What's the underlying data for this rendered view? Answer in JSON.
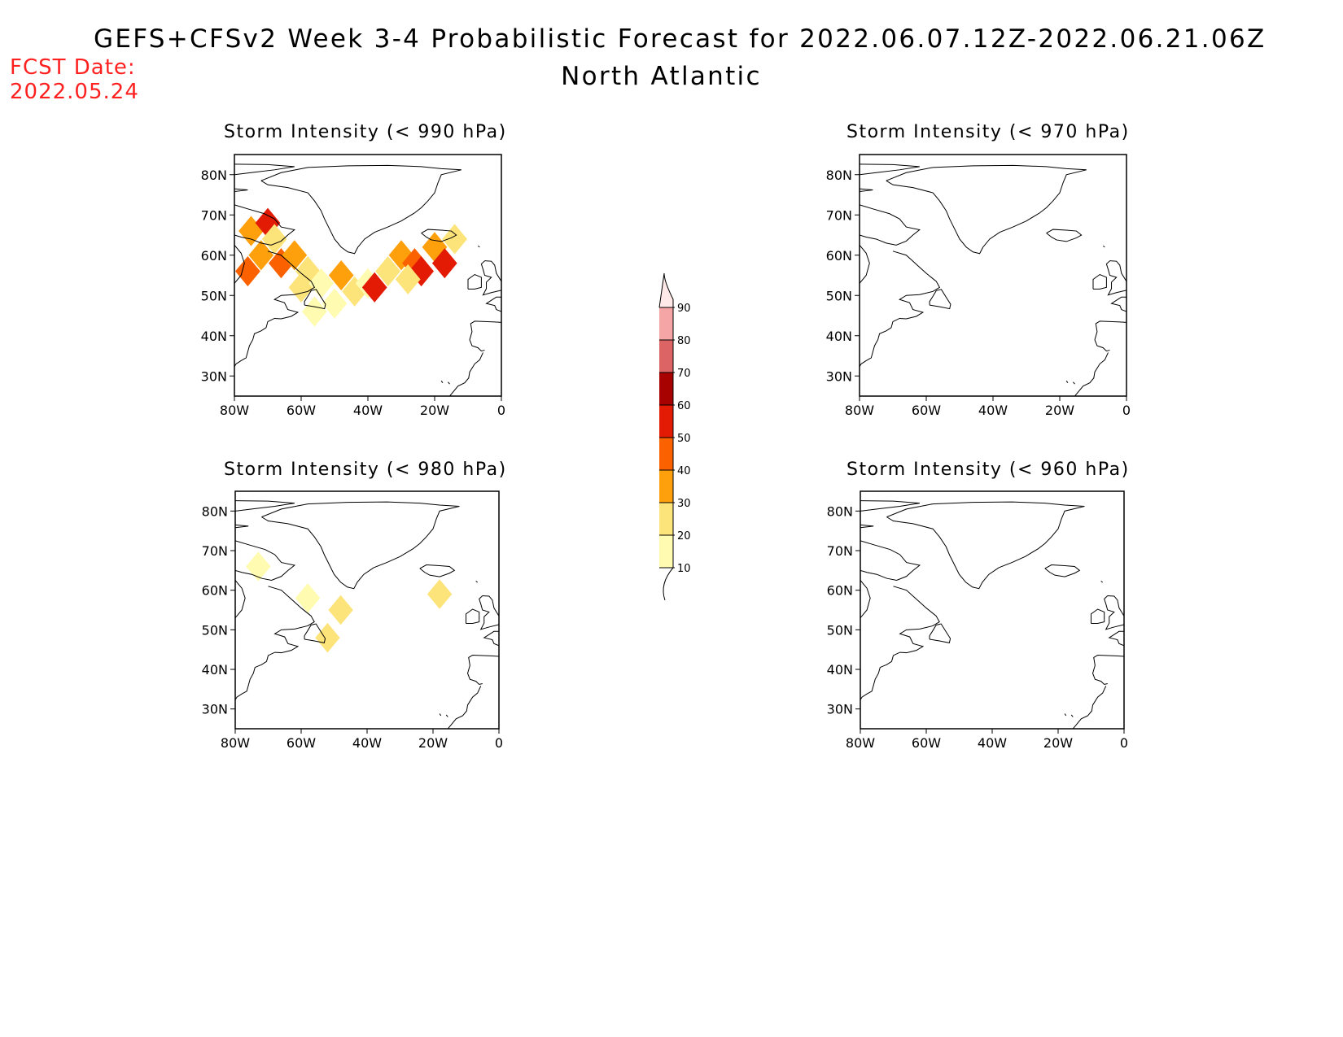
{
  "header": {
    "title": "GEFS+CFSv2 Week 3-4 Probabilistic Forecast for 2022.06.07.12Z-2022.06.21.06Z",
    "region": "North Atlantic",
    "fcst_label": "FCST Date:",
    "fcst_date": "2022.05.24",
    "fcst_color": "#ff2020"
  },
  "map_axes": {
    "lon_range": [
      -80,
      0
    ],
    "lat_range": [
      25,
      85
    ],
    "lon_ticks": [
      -80,
      -60,
      -40,
      -20,
      0
    ],
    "lon_tick_labels": [
      "80W",
      "60W",
      "40W",
      "20W",
      "0"
    ],
    "lat_ticks": [
      30,
      40,
      50,
      60,
      70,
      80
    ],
    "lat_tick_labels": [
      "30N",
      "40N",
      "50N",
      "60N",
      "70N",
      "80N"
    ]
  },
  "panels": [
    {
      "id": "p990",
      "title": "Storm Intensity (< 990 hPa)",
      "shading": [
        {
          "lon": -75,
          "lat": 66,
          "pct": 30
        },
        {
          "lon": -70,
          "lat": 68,
          "pct": 50
        },
        {
          "lon": -68,
          "lat": 64,
          "pct": 20
        },
        {
          "lon": -72,
          "lat": 60,
          "pct": 30
        },
        {
          "lon": -66,
          "lat": 58,
          "pct": 40
        },
        {
          "lon": -76,
          "lat": 56,
          "pct": 40
        },
        {
          "lon": -62,
          "lat": 60,
          "pct": 30
        },
        {
          "lon": -58,
          "lat": 56,
          "pct": 20
        },
        {
          "lon": -60,
          "lat": 52,
          "pct": 20
        },
        {
          "lon": -54,
          "lat": 53,
          "pct": 10
        },
        {
          "lon": -48,
          "lat": 55,
          "pct": 30
        },
        {
          "lon": -44,
          "lat": 51,
          "pct": 20
        },
        {
          "lon": -40,
          "lat": 53,
          "pct": 10
        },
        {
          "lon": -38,
          "lat": 52,
          "pct": 50
        },
        {
          "lon": -34,
          "lat": 56,
          "pct": 20
        },
        {
          "lon": -30,
          "lat": 60,
          "pct": 30
        },
        {
          "lon": -26,
          "lat": 58,
          "pct": 40
        },
        {
          "lon": -24,
          "lat": 56,
          "pct": 50
        },
        {
          "lon": -20,
          "lat": 62,
          "pct": 30
        },
        {
          "lon": -17,
          "lat": 58,
          "pct": 50
        },
        {
          "lon": -14,
          "lat": 64,
          "pct": 20
        },
        {
          "lon": -28,
          "lat": 54,
          "pct": 20
        },
        {
          "lon": -56,
          "lat": 46,
          "pct": 10
        },
        {
          "lon": -50,
          "lat": 48,
          "pct": 10
        }
      ]
    },
    {
      "id": "p970",
      "title": "Storm Intensity (< 970 hPa)",
      "shading": []
    },
    {
      "id": "p980",
      "title": "Storm Intensity (< 980 hPa)",
      "shading": [
        {
          "lon": -58,
          "lat": 58,
          "pct": 10
        },
        {
          "lon": -48,
          "lat": 55,
          "pct": 20
        },
        {
          "lon": -52,
          "lat": 48,
          "pct": 20
        },
        {
          "lon": -18,
          "lat": 59,
          "pct": 20
        },
        {
          "lon": -73,
          "lat": 66,
          "pct": 10
        }
      ]
    },
    {
      "id": "p960",
      "title": "Storm Intensity (< 960 hPa)",
      "shading": []
    }
  ],
  "colorbar": {
    "levels": [
      10,
      20,
      30,
      40,
      50,
      60,
      70,
      80,
      90
    ],
    "level_labels": [
      "10",
      "20",
      "30",
      "40",
      "50",
      "60",
      "70",
      "80",
      "90"
    ],
    "colors": [
      "#fffbb0",
      "#fde47a",
      "#fea00b",
      "#fc6100",
      "#e31b05",
      "#a70100",
      "#dc6464",
      "#f5a5a5",
      "#ffe8e8"
    ]
  }
}
